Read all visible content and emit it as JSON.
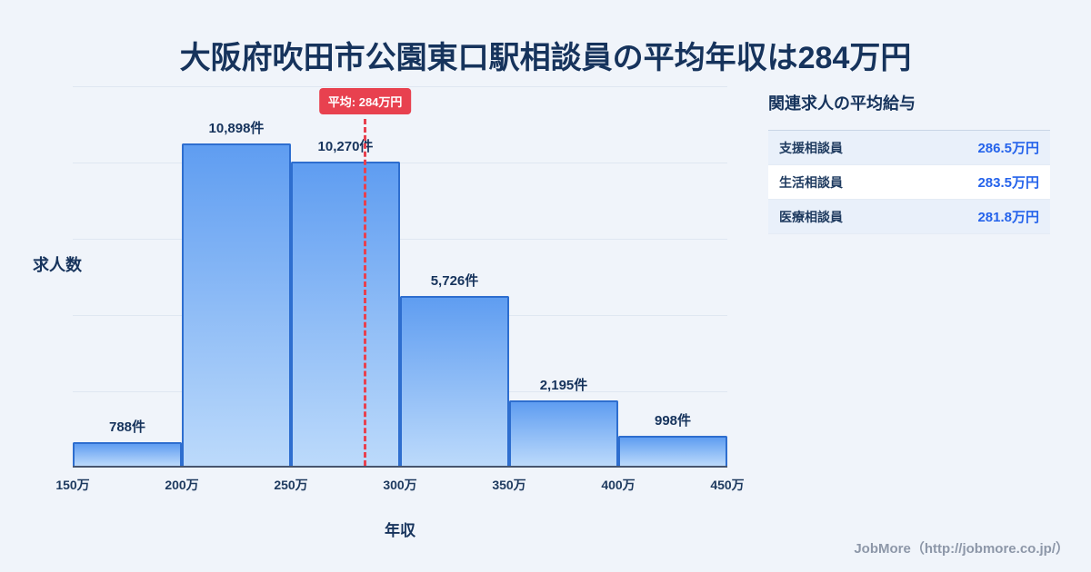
{
  "title": "大阪府吹田市公園東口駅相談員の平均年収は284万円",
  "chart_data": {
    "type": "bar",
    "title": "大阪府吹田市公園東口駅相談員の平均年収は284万円",
    "xlabel": "年収",
    "ylabel": "求人数",
    "bins": [
      "150万-200万",
      "200万-250万",
      "250万-300万",
      "300万-350万",
      "350万-400万",
      "400万-450万"
    ],
    "tick_labels": [
      "150万",
      "200万",
      "250万",
      "300万",
      "350万",
      "400万",
      "450万"
    ],
    "values": [
      788,
      10898,
      10270,
      5726,
      2195,
      998
    ],
    "bar_labels": [
      "788件",
      "10,898件",
      "10,270件",
      "5,726件",
      "2,195件",
      "998件"
    ],
    "xrange": [
      150,
      450
    ],
    "grid": true,
    "average": {
      "value": 284,
      "label": "平均: 284万円"
    }
  },
  "panel": {
    "title": "関連求人の平均給与",
    "rows": [
      {
        "label": "支援相談員",
        "value": "286.5万円"
      },
      {
        "label": "生活相談員",
        "value": "283.5万円"
      },
      {
        "label": "医療相談員",
        "value": "281.8万円"
      }
    ]
  },
  "footer": {
    "credit": "JobMore（http://jobmore.co.jp/）"
  },
  "colors": {
    "background": "#f0f4fa",
    "title_navy": "#16335c",
    "accent_red": "#e8414f",
    "value_blue": "#2563eb",
    "bar_border": "#2e6ecf",
    "bar_fill_top": "#5f9df1",
    "bar_fill_bottom": "#bcdafb"
  }
}
